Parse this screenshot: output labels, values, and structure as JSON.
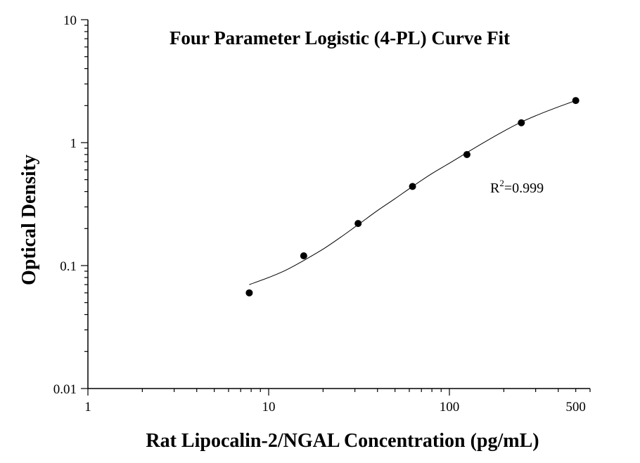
{
  "chart_data": {
    "type": "scatter",
    "title": "Four Parameter Logistic (4-PL) Curve Fit",
    "xlabel": "Rat Lipocalin-2/NGAL Concentration (pg/mL)",
    "ylabel": "Optical Density",
    "xscale": "log",
    "yscale": "log",
    "xlim": [
      1,
      600
    ],
    "ylim": [
      0.01,
      10
    ],
    "x_ticks": [
      {
        "value": 1,
        "label": "1"
      },
      {
        "value": 10,
        "label": "10"
      },
      {
        "value": 100,
        "label": "100"
      },
      {
        "value": 500,
        "label": "500"
      }
    ],
    "y_ticks": [
      {
        "value": 0.01,
        "label": "0.01"
      },
      {
        "value": 0.1,
        "label": "0.1"
      },
      {
        "value": 1,
        "label": "1"
      },
      {
        "value": 10,
        "label": "10"
      }
    ],
    "grid": false,
    "legend": "none",
    "series": [
      {
        "points": [
          {
            "x": 7.81,
            "y": 0.06
          },
          {
            "x": 15.63,
            "y": 0.12
          },
          {
            "x": 31.25,
            "y": 0.22
          },
          {
            "x": 62.5,
            "y": 0.44
          },
          {
            "x": 125,
            "y": 0.8
          },
          {
            "x": 250,
            "y": 1.45
          },
          {
            "x": 500,
            "y": 2.2
          }
        ]
      }
    ],
    "fit": {
      "model": "4PL",
      "curve": [
        {
          "x": 7.81,
          "y": 0.07
        },
        {
          "x": 10,
          "y": 0.08
        },
        {
          "x": 12.5,
          "y": 0.092
        },
        {
          "x": 15.63,
          "y": 0.11
        },
        {
          "x": 20,
          "y": 0.136
        },
        {
          "x": 25,
          "y": 0.17
        },
        {
          "x": 31.25,
          "y": 0.215
        },
        {
          "x": 40,
          "y": 0.28
        },
        {
          "x": 50,
          "y": 0.35
        },
        {
          "x": 62.5,
          "y": 0.44
        },
        {
          "x": 80,
          "y": 0.56
        },
        {
          "x": 100,
          "y": 0.68
        },
        {
          "x": 125,
          "y": 0.83
        },
        {
          "x": 160,
          "y": 1.03
        },
        {
          "x": 200,
          "y": 1.24
        },
        {
          "x": 250,
          "y": 1.47
        },
        {
          "x": 320,
          "y": 1.72
        },
        {
          "x": 400,
          "y": 1.95
        },
        {
          "x": 500,
          "y": 2.2
        }
      ]
    },
    "annotation": {
      "base": "R",
      "sup": "2",
      "text": "=0.999"
    }
  }
}
